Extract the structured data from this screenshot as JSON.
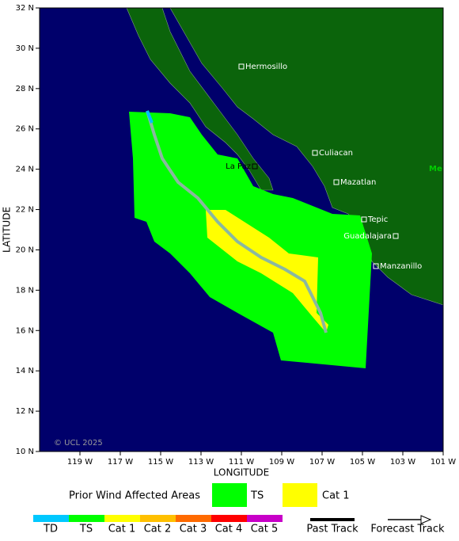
{
  "axes": {
    "x_label": "LONGITUDE",
    "y_label": "LATITUDE",
    "x_ticks": [
      "119 W",
      "117 W",
      "115 W",
      "113 W",
      "111 W",
      "109 W",
      "107 W",
      "105 W",
      "103 W",
      "101 W"
    ],
    "y_ticks": [
      "32 N",
      "30 N",
      "28 N",
      "26 N",
      "24 N",
      "22 N",
      "20 N",
      "18 N",
      "16 N",
      "14 N",
      "12 N",
      "10 N"
    ]
  },
  "cities": [
    "Hermosillo",
    "Culiacan",
    "La Paz",
    "Mazatlan",
    "Tepic",
    "Guadalajara",
    "Manzanillo",
    "Me"
  ],
  "copyright": "© UCL 2025",
  "legend": {
    "title": "Prior Wind Affected Areas",
    "areas": [
      "TS",
      "Cat 1"
    ],
    "scale": [
      "TD",
      "TS",
      "Cat 1",
      "Cat 2",
      "Cat 3",
      "Cat 4",
      "Cat 5"
    ],
    "tracks": [
      "Past Track",
      "Forecast Track"
    ]
  }
}
